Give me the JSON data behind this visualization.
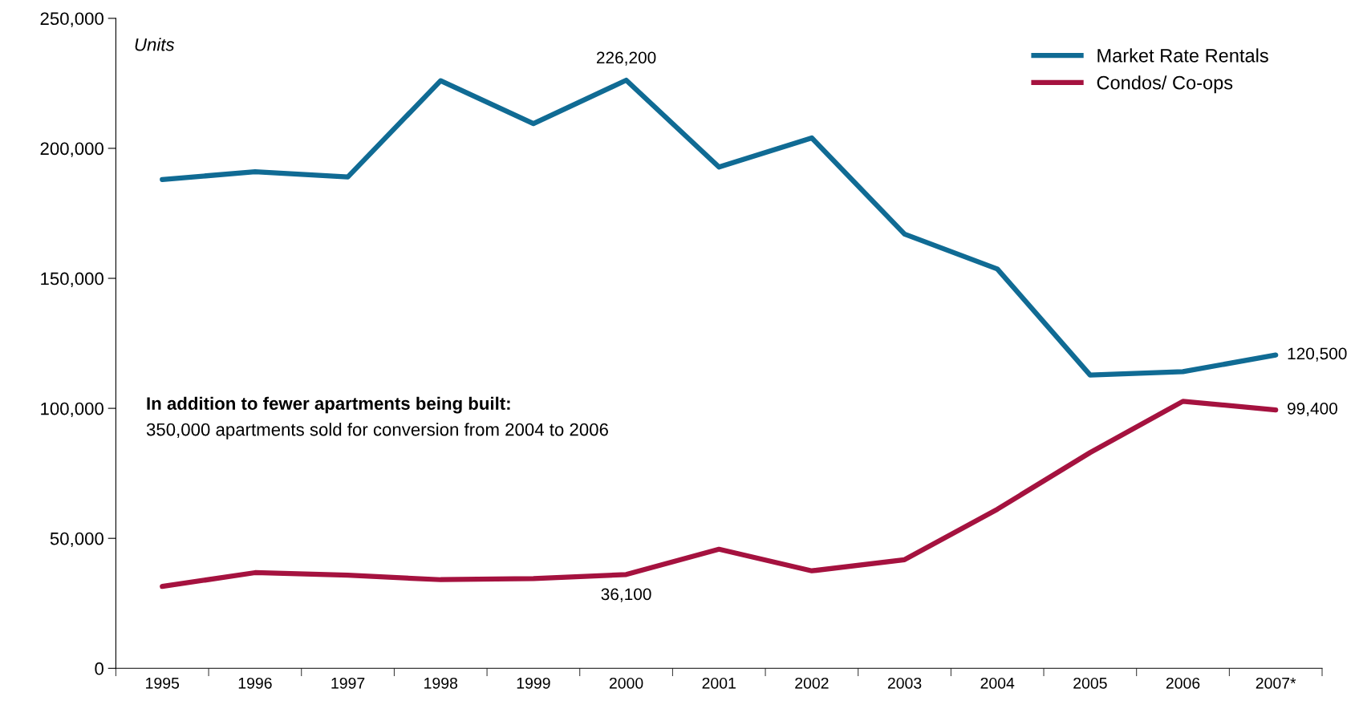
{
  "chart_data": {
    "type": "line",
    "ylabel": "Units",
    "categories": [
      "1995",
      "1996",
      "1997",
      "1998",
      "1999",
      "2000",
      "2001",
      "2002",
      "2003",
      "2004",
      "2005",
      "2006",
      "2007*"
    ],
    "series": [
      {
        "name": "Market Rate Rentals",
        "color": "#106b94",
        "values": [
          188000,
          191000,
          189000,
          226000,
          209500,
          226200,
          192800,
          204000,
          167000,
          153600,
          112800,
          114100,
          120500
        ],
        "value_labels": [
          null,
          null,
          null,
          null,
          null,
          "226,200",
          null,
          null,
          null,
          null,
          null,
          null,
          "120,500"
        ]
      },
      {
        "name": "Condos/ Co-ops",
        "color": "#a5123f",
        "values": [
          31500,
          36800,
          35800,
          34100,
          34500,
          36100,
          45800,
          37500,
          41800,
          61200,
          83000,
          102700,
          99400
        ],
        "value_labels": [
          null,
          null,
          null,
          null,
          null,
          "36,100",
          null,
          null,
          null,
          null,
          null,
          null,
          "99,400"
        ]
      }
    ],
    "ylim": [
      0,
      250000
    ],
    "yticks": [
      0,
      {
        "value": 50000,
        "label": "50,000"
      },
      {
        "value": 100000,
        "label": "100,000"
      },
      {
        "value": 150000,
        "label": "150,000"
      },
      {
        "value": 200000,
        "label": "200,000"
      },
      {
        "value": 250000,
        "label": "250,000"
      }
    ],
    "annotations": [
      "In addition to fewer apartments being built:",
      "350,000 apartments sold for conversion from 2004 to 2006"
    ],
    "legend": "top right",
    "grid": false,
    "marker": "none",
    "line_style": "solid"
  }
}
